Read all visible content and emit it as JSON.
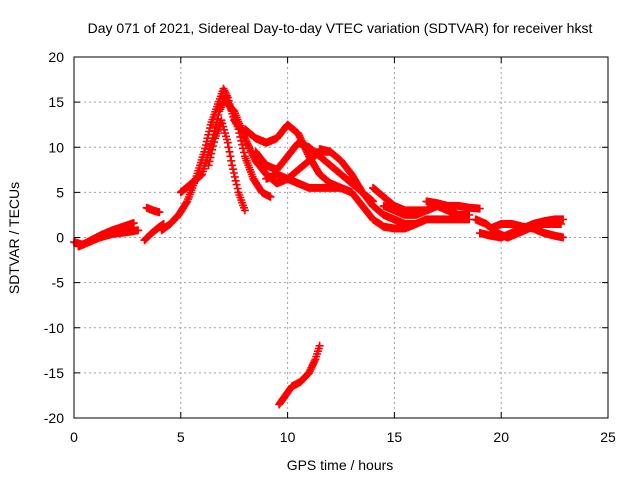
{
  "chart_data": {
    "type": "scatter",
    "title": "Day 071 of 2021, Sidereal Day-to-day VTEC variation (SDTVAR) for receiver hkst",
    "xlabel": "GPS time / hours",
    "ylabel": "SDTVAR / TECUs",
    "xlim": [
      0,
      25
    ],
    "ylim": [
      -20,
      20
    ],
    "xticks": [
      0,
      5,
      10,
      15,
      20,
      25
    ],
    "yticks": [
      -20,
      -15,
      -10,
      -5,
      0,
      5,
      10,
      15,
      20
    ],
    "grid": true,
    "marker": "plus",
    "color": "#ff0000",
    "series": [
      {
        "name": "arc-1",
        "x": [
          0.0,
          0.4,
          0.8,
          1.3,
          1.8,
          2.3,
          2.8
        ],
        "y": [
          -0.5,
          -0.8,
          -0.3,
          0.3,
          0.8,
          1.2,
          1.6
        ]
      },
      {
        "name": "arc-2",
        "x": [
          0.2,
          0.7,
          1.2,
          1.8,
          2.5,
          3.0
        ],
        "y": [
          -1.0,
          -0.5,
          0.0,
          0.4,
          0.6,
          0.8
        ]
      },
      {
        "name": "arc-3",
        "x": [
          3.3,
          3.6,
          3.9,
          4.2
        ],
        "y": [
          -0.3,
          0.4,
          1.0,
          1.5
        ]
      },
      {
        "name": "arc-4",
        "x": [
          3.4,
          3.7,
          4.0
        ],
        "y": [
          3.3,
          3.0,
          2.8
        ]
      },
      {
        "name": "arc-5",
        "x": [
          4.1,
          4.5,
          4.9,
          5.3,
          5.7,
          6.1,
          6.4,
          6.7,
          7.0,
          7.2,
          7.5,
          7.8,
          8.1
        ],
        "y": [
          0.8,
          1.5,
          2.5,
          4.0,
          6.5,
          9.5,
          12.5,
          14.5,
          16.5,
          15.5,
          13.0,
          12.0,
          11.5
        ]
      },
      {
        "name": "arc-6",
        "x": [
          5.0,
          5.5,
          6.0,
          6.5,
          6.8,
          7.1,
          7.4,
          7.7,
          8.0,
          8.4,
          8.8,
          9.2
        ],
        "y": [
          5.0,
          6.0,
          7.0,
          11.0,
          14.0,
          15.5,
          14.0,
          12.0,
          9.0,
          6.5,
          5.0,
          4.5
        ]
      },
      {
        "name": "arc-7",
        "x": [
          6.3,
          6.6,
          6.9,
          7.2,
          7.4,
          7.7,
          8.0
        ],
        "y": [
          8.0,
          11.0,
          13.0,
          10.5,
          8.0,
          5.0,
          3.0
        ]
      },
      {
        "name": "arc-8",
        "x": [
          7.1,
          7.5,
          8.0,
          8.5,
          9.0,
          9.5,
          10.0,
          10.5,
          11.0,
          11.5,
          12.0
        ],
        "y": [
          15.0,
          14.0,
          11.0,
          8.5,
          7.0,
          6.0,
          6.5,
          7.5,
          8.5,
          9.5,
          9.5
        ]
      },
      {
        "name": "arc-9",
        "x": [
          8.0,
          8.5,
          9.0,
          9.5,
          10.0,
          10.5,
          11.0,
          11.5,
          12.0,
          12.5,
          13.0
        ],
        "y": [
          12.0,
          11.0,
          10.5,
          11.0,
          12.5,
          11.5,
          9.0,
          7.0,
          6.0,
          5.5,
          5.0
        ]
      },
      {
        "name": "arc-10",
        "x": [
          8.5,
          9.0,
          9.5,
          10.0,
          10.5,
          11.0,
          11.5,
          12.0,
          12.5,
          13.0,
          13.5,
          14.0
        ],
        "y": [
          9.5,
          8.0,
          7.5,
          9.0,
          10.5,
          10.0,
          9.0,
          8.0,
          7.0,
          6.0,
          5.0,
          4.0
        ]
      },
      {
        "name": "arc-11",
        "x": [
          9.0,
          9.5,
          10.0,
          10.5,
          11.0,
          11.5,
          12.0,
          12.5,
          13.0
        ],
        "y": [
          6.5,
          7.0,
          6.5,
          6.0,
          5.5,
          5.5,
          5.5,
          5.5,
          5.0
        ]
      },
      {
        "name": "arc-12",
        "x": [
          11.5,
          12.0,
          12.5,
          13.0,
          13.5,
          14.0,
          14.5,
          15.0,
          15.5,
          16.0
        ],
        "y": [
          9.8,
          9.5,
          8.5,
          7.0,
          5.0,
          3.5,
          2.5,
          2.0,
          1.5,
          1.5
        ]
      },
      {
        "name": "arc-13",
        "x": [
          13.0,
          13.5,
          14.0,
          14.5,
          15.0,
          15.5,
          16.0,
          16.5,
          17.0,
          17.5,
          18.0,
          18.5
        ],
        "y": [
          5.0,
          3.5,
          2.0,
          1.2,
          1.0,
          1.0,
          1.5,
          2.0,
          2.0,
          2.0,
          2.0,
          2.0
        ]
      },
      {
        "name": "arc-14",
        "x": [
          14.0,
          14.5,
          15.0,
          15.5,
          16.0,
          16.5,
          17.0
        ],
        "y": [
          5.5,
          4.5,
          3.5,
          3.0,
          3.0,
          3.0,
          3.5
        ]
      },
      {
        "name": "arc-15",
        "x": [
          14.5,
          15.0,
          15.5,
          16.0,
          16.5,
          17.0,
          17.5,
          18.0,
          18.5
        ],
        "y": [
          3.5,
          3.0,
          2.5,
          2.5,
          3.0,
          3.5,
          3.0,
          2.5,
          2.5
        ]
      },
      {
        "name": "arc-16",
        "x": [
          16.5,
          17.0,
          17.5,
          18.0,
          18.5,
          19.0
        ],
        "y": [
          4.0,
          3.8,
          3.5,
          3.5,
          3.3,
          3.2
        ]
      },
      {
        "name": "arc-17",
        "x": [
          18.8,
          19.3,
          19.8,
          20.3,
          20.8,
          21.3,
          21.8,
          22.3,
          22.8
        ],
        "y": [
          2.0,
          1.5,
          0.5,
          0.0,
          0.5,
          1.0,
          1.5,
          1.5,
          1.5
        ]
      },
      {
        "name": "arc-18",
        "x": [
          19.0,
          19.5,
          20.0,
          20.5,
          21.0,
          21.5,
          22.0,
          22.5,
          22.9
        ],
        "y": [
          0.5,
          0.2,
          0.0,
          0.5,
          1.0,
          1.5,
          1.8,
          2.0,
          2.0
        ]
      },
      {
        "name": "arc-19",
        "x": [
          19.5,
          20.0,
          20.5,
          21.0,
          21.5,
          22.0,
          22.5,
          22.9
        ],
        "y": [
          1.0,
          1.5,
          1.5,
          1.2,
          1.0,
          0.5,
          0.2,
          0.0
        ]
      },
      {
        "name": "arc-20",
        "x": [
          9.6,
          9.9,
          10.2,
          10.6,
          11.0,
          11.3,
          11.5
        ],
        "y": [
          -18.5,
          -17.5,
          -16.5,
          -16.0,
          -15.0,
          -13.5,
          -12.0
        ]
      }
    ]
  }
}
